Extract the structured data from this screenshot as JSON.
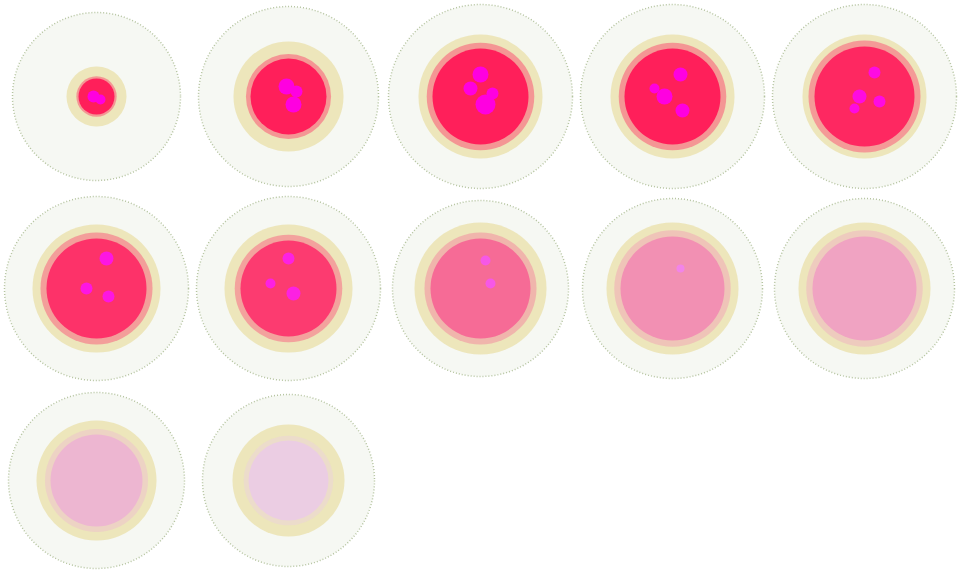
{
  "chart_data": {
    "type": "small_multiples",
    "tick_labels": false,
    "colors": [
      "#b5c4a0",
      "#e6d78c",
      "#ff1f5a",
      "#ff00e0",
      "#e9dcef"
    ],
    "panels": [
      {
        "halo": 84,
        "ring": 30,
        "core": 18,
        "intensity": 1.0,
        "spots": [
          {
            "x": -3,
            "y": 0,
            "r": 6
          },
          {
            "x": 4,
            "y": -3,
            "r": 5
          }
        ]
      },
      {
        "halo": 90,
        "ring": 55,
        "core": 38,
        "intensity": 1.0,
        "spots": [
          {
            "x": 5,
            "y": -8,
            "r": 8
          },
          {
            "x": -2,
            "y": 10,
            "r": 8
          },
          {
            "x": 8,
            "y": 5,
            "r": 6
          }
        ]
      },
      {
        "halo": 92,
        "ring": 62,
        "core": 48,
        "intensity": 1.0,
        "spots": [
          {
            "x": 5,
            "y": -8,
            "r": 10
          },
          {
            "x": -10,
            "y": 8,
            "r": 7
          },
          {
            "x": 0,
            "y": 22,
            "r": 8
          },
          {
            "x": 12,
            "y": 3,
            "r": 6
          }
        ]
      },
      {
        "halo": 92,
        "ring": 62,
        "core": 48,
        "intensity": 1.0,
        "spots": [
          {
            "x": 10,
            "y": -14,
            "r": 7
          },
          {
            "x": -8,
            "y": 0,
            "r": 8
          },
          {
            "x": 8,
            "y": 22,
            "r": 7
          },
          {
            "x": -18,
            "y": 8,
            "r": 5
          }
        ]
      },
      {
        "halo": 92,
        "ring": 62,
        "core": 50,
        "intensity": 0.95,
        "spots": [
          {
            "x": 15,
            "y": -5,
            "r": 6
          },
          {
            "x": -5,
            "y": 0,
            "r": 7
          },
          {
            "x": 10,
            "y": 24,
            "r": 6
          },
          {
            "x": -10,
            "y": -12,
            "r": 5
          }
        ]
      },
      {
        "halo": 92,
        "ring": 64,
        "core": 50,
        "intensity": 0.9,
        "spots": [
          {
            "x": -10,
            "y": 0,
            "r": 6
          },
          {
            "x": 12,
            "y": -8,
            "r": 6
          },
          {
            "x": 10,
            "y": 30,
            "r": 7
          }
        ]
      },
      {
        "halo": 92,
        "ring": 64,
        "core": 48,
        "intensity": 0.85,
        "spots": [
          {
            "x": 5,
            "y": -5,
            "r": 7
          },
          {
            "x": -18,
            "y": 5,
            "r": 5
          },
          {
            "x": 0,
            "y": 30,
            "r": 6
          }
        ]
      },
      {
        "halo": 88,
        "ring": 66,
        "core": 50,
        "intensity": 0.6,
        "spots": [
          {
            "x": 10,
            "y": 5,
            "r": 5
          },
          {
            "x": 5,
            "y": 28,
            "r": 5
          }
        ]
      },
      {
        "halo": 90,
        "ring": 66,
        "core": 52,
        "intensity": 0.4,
        "spots": [
          {
            "x": 8,
            "y": 20,
            "r": 4
          }
        ]
      },
      {
        "halo": 90,
        "ring": 66,
        "core": 52,
        "intensity": 0.3,
        "spots": []
      },
      {
        "halo": 88,
        "ring": 60,
        "core": 46,
        "intensity": 0.2,
        "spots": []
      },
      {
        "halo": 86,
        "ring": 56,
        "core": 40,
        "intensity": 0.08,
        "spots": []
      }
    ]
  }
}
